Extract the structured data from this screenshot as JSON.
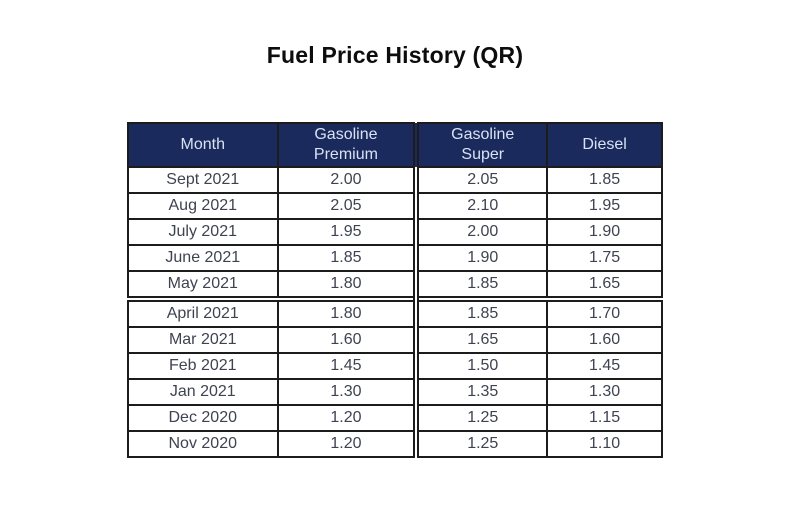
{
  "title": "Fuel Price History (QR)",
  "table": {
    "columns": [
      {
        "label": "Month"
      },
      {
        "label": "Gasoline\nPremium"
      },
      {
        "label": "Gasoline\nSuper"
      },
      {
        "label": "Diesel"
      }
    ],
    "rows": [
      [
        "Sept 2021",
        "2.00",
        "2.05",
        "1.85"
      ],
      [
        "Aug 2021",
        "2.05",
        "2.10",
        "1.95"
      ],
      [
        "July 2021",
        "1.95",
        "2.00",
        "1.90"
      ],
      [
        "June 2021",
        "1.85",
        "1.90",
        "1.75"
      ],
      [
        "May 2021",
        "1.80",
        "1.85",
        "1.65"
      ],
      [
        "April 2021",
        "1.80",
        "1.85",
        "1.70"
      ],
      [
        "Mar 2021",
        "1.60",
        "1.65",
        "1.60"
      ],
      [
        "Feb 2021",
        "1.45",
        "1.50",
        "1.45"
      ],
      [
        "Jan 2021",
        "1.30",
        "1.35",
        "1.30"
      ],
      [
        "Dec 2020",
        "1.20",
        "1.25",
        "1.15"
      ],
      [
        "Nov 2020",
        "1.20",
        "1.25",
        "1.10"
      ]
    ]
  },
  "colors": {
    "header_background": "#1a2a5c",
    "header_text": "#d9e2f3",
    "cell_text": "#3e4350",
    "border": "#1c1c1c",
    "title_text": "#0d0d0d",
    "page_background": "#ffffff"
  }
}
